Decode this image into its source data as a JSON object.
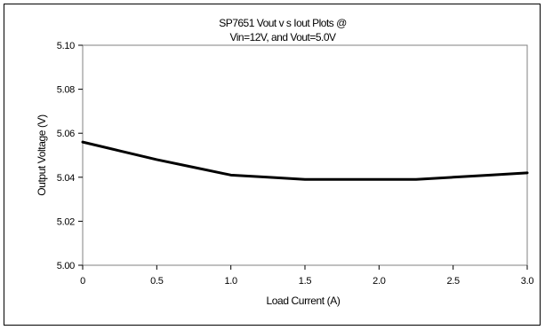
{
  "chart_data": {
    "type": "line",
    "title_line1": "SP7651 Vout v s Iout Plots @",
    "title_line2": "Vin=12V, and Vout=5.0V",
    "xlabel": "Load Current (A)",
    "ylabel": "Output Voltage (V)",
    "xlim": [
      0,
      3.0
    ],
    "ylim": [
      5.0,
      5.1
    ],
    "x_ticks": [
      "0",
      "0.5",
      "1.0",
      "1.5",
      "2.0",
      "2.5",
      "3.0"
    ],
    "x_tick_values": [
      0,
      0.5,
      1.0,
      1.5,
      2.0,
      2.5,
      3.0
    ],
    "y_ticks": [
      "5.10",
      "5.08",
      "5.06",
      "5.04",
      "5.02",
      "5.00"
    ],
    "y_tick_values": [
      5.1,
      5.08,
      5.06,
      5.04,
      5.02,
      5.0
    ],
    "grid": false,
    "legend": "none",
    "line_color": "#000000",
    "series": [
      {
        "x": [
          0,
          0.25,
          0.5,
          0.75,
          1.0,
          1.25,
          1.5,
          1.75,
          2.0,
          2.25,
          2.5,
          2.75,
          3.0
        ],
        "values": [
          5.056,
          5.052,
          5.048,
          5.0445,
          5.041,
          5.04,
          5.039,
          5.039,
          5.039,
          5.039,
          5.04,
          5.041,
          5.042
        ]
      }
    ]
  }
}
